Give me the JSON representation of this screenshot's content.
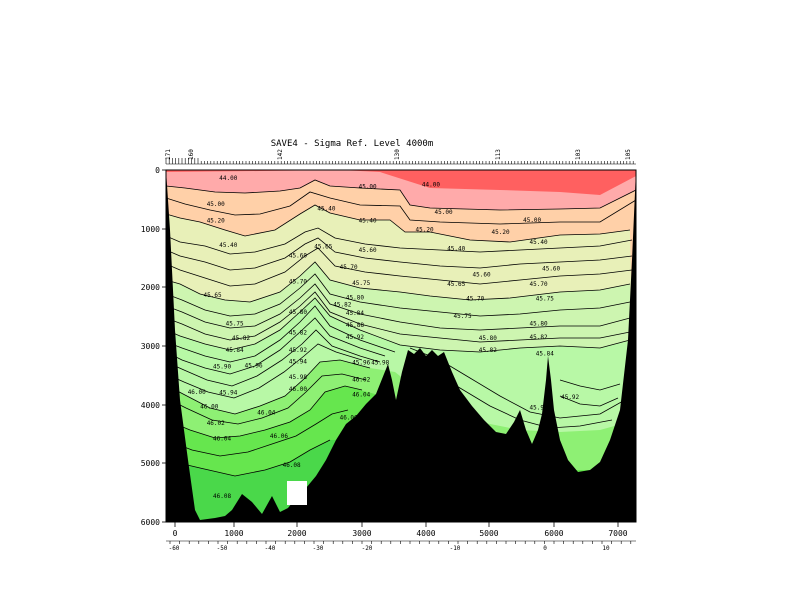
{
  "chart_data": {
    "type": "contour",
    "title": "SAVE4 - Sigma Ref. Level 4000m",
    "x_distance_ticks": [
      "0",
      "1000",
      "2000",
      "3000",
      "4000",
      "5000",
      "6000",
      "7000"
    ],
    "y_depth_ticks": [
      "0",
      "1000",
      "2000",
      "3000",
      "4000",
      "5000",
      "6000"
    ],
    "latitude_ticks": [
      "-60",
      "-50",
      "-40",
      "-30",
      "-20",
      "-10",
      "0",
      "10"
    ],
    "station_ticks": [
      "171",
      "160",
      "142",
      "130",
      "113",
      "103",
      "105"
    ],
    "x_range_km": [
      -10,
      7300
    ],
    "depth_range_m": [
      0,
      6000
    ],
    "levels": [
      44.0,
      45.0,
      45.2,
      45.4,
      45.6,
      45.7,
      45.75,
      45.8,
      45.82,
      45.84,
      45.88,
      45.9,
      45.92,
      45.94,
      45.96,
      45.98,
      46.0,
      46.02,
      46.04,
      46.06,
      46.08
    ],
    "contour_labels": [
      {
        "text": "44.00",
        "x": 700,
        "depth": 140
      },
      {
        "text": "45.00",
        "x": 2900,
        "depth": 280
      },
      {
        "text": "44.00",
        "x": 3900,
        "depth": 250
      },
      {
        "text": "45.00",
        "x": 500,
        "depth": 580
      },
      {
        "text": "45.40",
        "x": 2250,
        "depth": 660
      },
      {
        "text": "45.00",
        "x": 4100,
        "depth": 720
      },
      {
        "text": "45.00",
        "x": 5500,
        "depth": 850
      },
      {
        "text": "45.20",
        "x": 500,
        "depth": 860
      },
      {
        "text": "45.40",
        "x": 2900,
        "depth": 860
      },
      {
        "text": "45.20",
        "x": 3800,
        "depth": 1010
      },
      {
        "text": "45.20",
        "x": 5000,
        "depth": 1060
      },
      {
        "text": "45.40",
        "x": 5600,
        "depth": 1230
      },
      {
        "text": "45.40",
        "x": 700,
        "depth": 1280
      },
      {
        "text": "45.65",
        "x": 2200,
        "depth": 1300
      },
      {
        "text": "45.60",
        "x": 2900,
        "depth": 1360
      },
      {
        "text": "45.40",
        "x": 4300,
        "depth": 1340
      },
      {
        "text": "45.60",
        "x": 1800,
        "depth": 1460
      },
      {
        "text": "45.70",
        "x": 2600,
        "depth": 1650
      },
      {
        "text": "45.60",
        "x": 4700,
        "depth": 1780
      },
      {
        "text": "45.60",
        "x": 5800,
        "depth": 1680
      },
      {
        "text": "45.70",
        "x": 1800,
        "depth": 1900
      },
      {
        "text": "45.75",
        "x": 2800,
        "depth": 1930
      },
      {
        "text": "45.65",
        "x": 4300,
        "depth": 1940
      },
      {
        "text": "45.70",
        "x": 5600,
        "depth": 1940
      },
      {
        "text": "45.65",
        "x": 450,
        "depth": 2130
      },
      {
        "text": "45.80",
        "x": 2700,
        "depth": 2170
      },
      {
        "text": "45.70",
        "x": 4600,
        "depth": 2190
      },
      {
        "text": "45.75",
        "x": 5700,
        "depth": 2190
      },
      {
        "text": "45.82",
        "x": 2500,
        "depth": 2290
      },
      {
        "text": "45.80",
        "x": 1800,
        "depth": 2420
      },
      {
        "text": "45.84",
        "x": 2700,
        "depth": 2440
      },
      {
        "text": "45.75",
        "x": 4400,
        "depth": 2490
      },
      {
        "text": "45.75",
        "x": 800,
        "depth": 2620
      },
      {
        "text": "45.80",
        "x": 5600,
        "depth": 2620
      },
      {
        "text": "45.88",
        "x": 2700,
        "depth": 2640
      },
      {
        "text": "45.82",
        "x": 1800,
        "depth": 2770
      },
      {
        "text": "45.92",
        "x": 2700,
        "depth": 2850
      },
      {
        "text": "45.82",
        "x": 900,
        "depth": 2860
      },
      {
        "text": "45.80",
        "x": 4800,
        "depth": 2860
      },
      {
        "text": "45.82",
        "x": 5600,
        "depth": 2850
      },
      {
        "text": "45.84",
        "x": 800,
        "depth": 3070
      },
      {
        "text": "45.92",
        "x": 1800,
        "depth": 3070
      },
      {
        "text": "45.82",
        "x": 4800,
        "depth": 3070
      },
      {
        "text": "45.84",
        "x": 5700,
        "depth": 3130
      },
      {
        "text": "45.96",
        "x": 2800,
        "depth": 3280
      },
      {
        "text": "45.98",
        "x": 3100,
        "depth": 3280
      },
      {
        "text": "45.90",
        "x": 600,
        "depth": 3350
      },
      {
        "text": "45.96",
        "x": 1100,
        "depth": 3330
      },
      {
        "text": "45.94",
        "x": 1800,
        "depth": 3260
      },
      {
        "text": "45.98",
        "x": 1800,
        "depth": 3530
      },
      {
        "text": "46.02",
        "x": 2800,
        "depth": 3570
      },
      {
        "text": "46.00",
        "x": 1800,
        "depth": 3730
      },
      {
        "text": "46.00",
        "x": 200,
        "depth": 3780
      },
      {
        "text": "45.94",
        "x": 700,
        "depth": 3790
      },
      {
        "text": "46.04",
        "x": 2800,
        "depth": 3830
      },
      {
        "text": "45.90",
        "x": 5600,
        "depth": 4050
      },
      {
        "text": "45.92",
        "x": 6100,
        "depth": 3870
      },
      {
        "text": "46.00",
        "x": 400,
        "depth": 4030
      },
      {
        "text": "46.04",
        "x": 1300,
        "depth": 4130
      },
      {
        "text": "46.06",
        "x": 2600,
        "depth": 4220
      },
      {
        "text": "46.02",
        "x": 500,
        "depth": 4310
      },
      {
        "text": "46.06",
        "x": 1500,
        "depth": 4530
      },
      {
        "text": "46.04",
        "x": 600,
        "depth": 4580
      },
      {
        "text": "46.08",
        "x": 1700,
        "depth": 5030
      },
      {
        "text": "46.08",
        "x": 600,
        "depth": 5560
      }
    ]
  }
}
